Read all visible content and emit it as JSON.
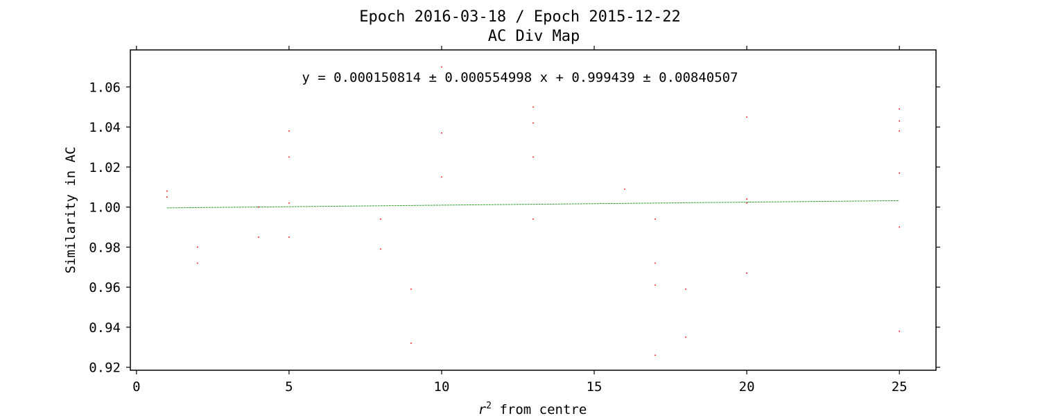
{
  "chart_data": {
    "type": "scatter",
    "title": "Epoch 2016-03-18 / Epoch 2015-12-22",
    "subtitle": "AC Div Map",
    "xlabel_var": "r",
    "xlabel_sup": "2",
    "xlabel_rest": " from centre",
    "ylabel": "Similarity in AC",
    "fit_text": "y = 0.000150814 ± 0.000554998 x + 0.999439 ± 0.00840507",
    "fit": {
      "slope": 0.000150814,
      "intercept": 0.999439,
      "x_range": [
        1,
        25
      ],
      "color": "#2ca02c"
    },
    "xlim": [
      -0.2,
      26.2
    ],
    "ylim": [
      0.9185,
      1.0785
    ],
    "xticks": [
      0,
      5,
      10,
      15,
      20,
      25
    ],
    "xtick_labels": [
      "0",
      "5",
      "10",
      "15",
      "20",
      "25"
    ],
    "yticks": [
      0.92,
      0.94,
      0.96,
      0.98,
      1.0,
      1.02,
      1.04,
      1.06
    ],
    "ytick_labels": [
      "0.92",
      "0.94",
      "0.96",
      "0.98",
      "1.00",
      "1.02",
      "1.04",
      "1.06"
    ],
    "point_color": "#ff0000",
    "points": [
      {
        "x": 1,
        "y": 1.008
      },
      {
        "x": 1,
        "y": 1.005
      },
      {
        "x": 2,
        "y": 0.98
      },
      {
        "x": 2,
        "y": 0.972
      },
      {
        "x": 4,
        "y": 1.0
      },
      {
        "x": 4,
        "y": 0.985
      },
      {
        "x": 5,
        "y": 1.038
      },
      {
        "x": 5,
        "y": 1.025
      },
      {
        "x": 5,
        "y": 1.002
      },
      {
        "x": 5,
        "y": 0.985
      },
      {
        "x": 8,
        "y": 0.994
      },
      {
        "x": 8,
        "y": 0.979
      },
      {
        "x": 9,
        "y": 0.959
      },
      {
        "x": 9,
        "y": 0.932
      },
      {
        "x": 10,
        "y": 1.07
      },
      {
        "x": 10,
        "y": 1.037
      },
      {
        "x": 10,
        "y": 1.015
      },
      {
        "x": 13,
        "y": 1.05
      },
      {
        "x": 13,
        "y": 1.042
      },
      {
        "x": 13,
        "y": 1.025
      },
      {
        "x": 13,
        "y": 0.994
      },
      {
        "x": 16,
        "y": 1.009
      },
      {
        "x": 17,
        "y": 0.994
      },
      {
        "x": 17,
        "y": 0.972
      },
      {
        "x": 17,
        "y": 0.961
      },
      {
        "x": 17,
        "y": 0.926
      },
      {
        "x": 18,
        "y": 0.959
      },
      {
        "x": 18,
        "y": 0.935
      },
      {
        "x": 20,
        "y": 1.045
      },
      {
        "x": 20,
        "y": 1.004
      },
      {
        "x": 20,
        "y": 1.002
      },
      {
        "x": 20,
        "y": 0.967
      },
      {
        "x": 25,
        "y": 1.049
      },
      {
        "x": 25,
        "y": 1.043
      },
      {
        "x": 25,
        "y": 1.038
      },
      {
        "x": 25,
        "y": 1.017
      },
      {
        "x": 25,
        "y": 0.99
      },
      {
        "x": 25,
        "y": 0.938
      }
    ]
  }
}
